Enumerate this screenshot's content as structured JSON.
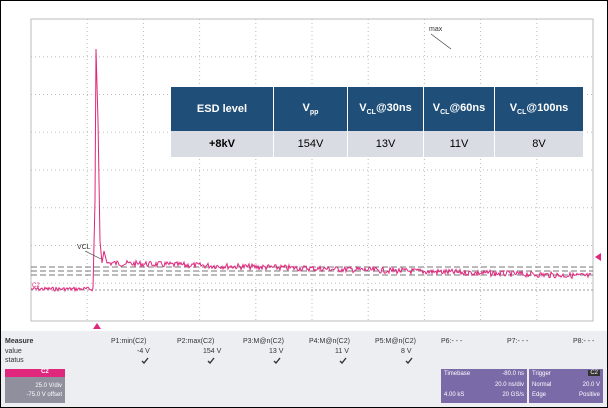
{
  "screen": {
    "markers": {
      "max": "max",
      "vcl": "VCL",
      "channel": "C2"
    },
    "table": {
      "header": [
        "ESD level",
        {
          "text": "V",
          "sub": "pp"
        },
        {
          "text": "V",
          "sub": "CL",
          "suffix": "@30ns"
        },
        {
          "text": "V",
          "sub": "CL",
          "suffix": "@60ns"
        },
        {
          "text": "V",
          "sub": "CL",
          "suffix": "@100ns"
        }
      ],
      "rows": [
        [
          "+8kV",
          "154V",
          "13V",
          "11V",
          "8V"
        ]
      ]
    },
    "measure": {
      "title": "Measure",
      "row_labels": [
        "value",
        "status"
      ],
      "params": [
        {
          "name": "P1:min(C2)",
          "value": "-4 V"
        },
        {
          "name": "P2:max(C2)",
          "value": "154 V"
        },
        {
          "name": "P3:M@n(C2)",
          "value": "13 V"
        },
        {
          "name": "P4:M@n(C2)",
          "value": "11 V"
        },
        {
          "name": "P5:M@n(C2)",
          "value": "8 V"
        },
        {
          "name": "P6:- - -"
        },
        {
          "name": "P7:- - -"
        },
        {
          "name": "P8:- - -"
        }
      ]
    },
    "channel_box": {
      "name": "C2",
      "scale": "25.0 V/div",
      "offset": "-75.0 V offset"
    },
    "timebase_box": {
      "title": "Timebase",
      "delay": "-80.0 ns",
      "scale": "20.0 ns/div",
      "samples": "4.00 kS",
      "rate": "20 GS/s"
    },
    "trigger_box": {
      "title": "Trigger",
      "channel": "C2",
      "mode": "Normal",
      "level": "20.0 V",
      "type": "Edge",
      "slope": "Positive"
    }
  }
}
